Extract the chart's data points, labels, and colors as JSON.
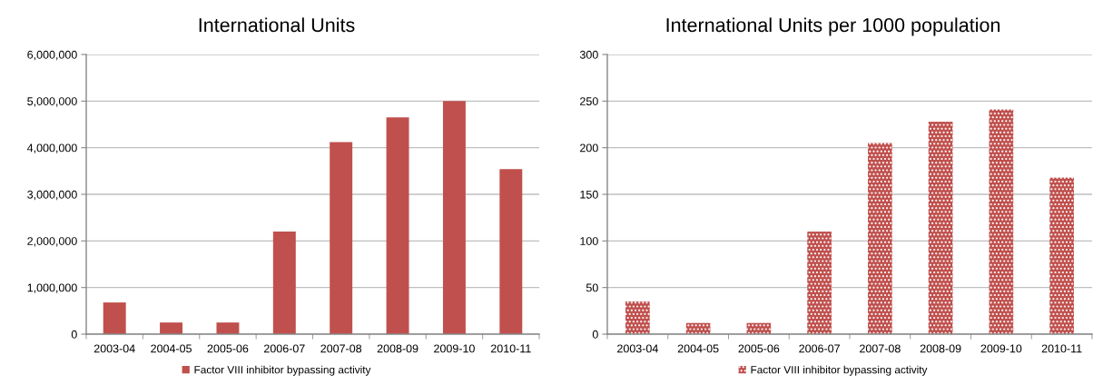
{
  "chart_data": [
    {
      "type": "bar",
      "title": "International Units",
      "categories": [
        "2003-04",
        "2004-05",
        "2005-06",
        "2006-07",
        "2007-08",
        "2008-09",
        "2009-10",
        "2010-11"
      ],
      "series": [
        {
          "name": "Factor VIII inhibitor bypassing activity",
          "color": "#c0504d",
          "values": [
            680000,
            250000,
            250000,
            2200000,
            4120000,
            4650000,
            5000000,
            3540000
          ]
        }
      ],
      "ylim": [
        0,
        6000000
      ],
      "yticks": [
        {
          "value": 0,
          "label": "0"
        },
        {
          "value": 1000000,
          "label": "1,000,000"
        },
        {
          "value": 2000000,
          "label": "2,000,000"
        },
        {
          "value": 3000000,
          "label": "3,000,000"
        },
        {
          "value": 4000000,
          "label": "4,000,000"
        },
        {
          "value": 5000000,
          "label": "5,000,000"
        },
        {
          "value": 6000000,
          "label": "6,000,000"
        }
      ],
      "grid": "y",
      "legend": "bottom"
    },
    {
      "type": "bar",
      "title": "International Units per 1000 population",
      "categories": [
        "2003-04",
        "2004-05",
        "2005-06",
        "2006-07",
        "2007-08",
        "2008-09",
        "2009-10",
        "2010-11"
      ],
      "series": [
        {
          "name": "Factor VIII inhibitor bypassing activity",
          "color": "#c0504d",
          "values": [
            35,
            12,
            12,
            110,
            205,
            228,
            241,
            168
          ]
        }
      ],
      "ylim": [
        0,
        300
      ],
      "yticks": [
        0,
        50,
        100,
        150,
        200,
        250,
        300
      ],
      "grid": "y",
      "legend": "bottom"
    }
  ]
}
